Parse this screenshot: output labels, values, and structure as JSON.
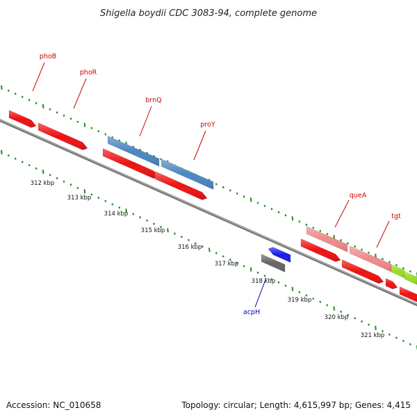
{
  "title": "Shigella boydii CDC 3083-94, complete genome",
  "footer": {
    "accession": "Accession: NC_010658",
    "summary": "Topology: circular; Length: 4,615,997 bp; Genes: 4,415"
  },
  "colors": {
    "backbone": "#8a8a8a",
    "tick_green": "#1e8c1e",
    "label_red": "#cc0000",
    "label_blue": "#0000cc",
    "cds_red": "#ee1111",
    "cds_steelblue": "#4a86c0",
    "cds_pink": "#ee8a8a",
    "cds_lime": "#99dd22",
    "cds_blue": "#1a1aee",
    "cds_gray": "#666666"
  },
  "scale": {
    "unit": "kbp",
    "labels": [
      "312 kbp",
      "313 kbp",
      "314 kbp",
      "315 kbp",
      "316 kbp",
      "317 kbp",
      "318 kbp",
      "319 kbp",
      "320 kbp",
      "321 kbp"
    ]
  },
  "gene_labels": [
    {
      "text": "phoB",
      "color": "label_red"
    },
    {
      "text": "phoR",
      "color": "label_red"
    },
    {
      "text": "brnQ",
      "color": "label_red"
    },
    {
      "text": "proY",
      "color": "label_red"
    },
    {
      "text": "queA",
      "color": "label_red"
    },
    {
      "text": "tgt",
      "color": "label_red"
    },
    {
      "text": "acpH",
      "color": "label_blue"
    }
  ]
}
